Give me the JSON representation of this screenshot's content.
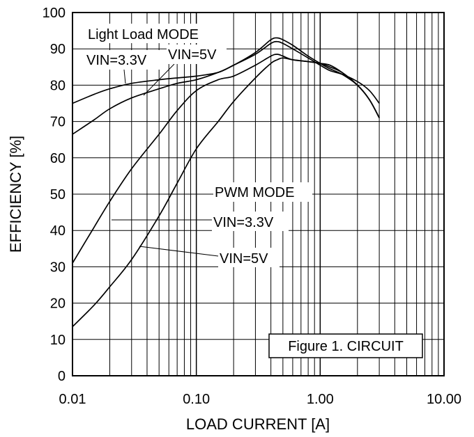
{
  "chart_data": {
    "type": "line",
    "title": "",
    "xlabel": "LOAD CURRENT [A]",
    "ylabel": "EFFICIENCY [%]",
    "x_scale": "log",
    "xlim": [
      0.01,
      10
    ],
    "ylim": [
      0,
      100
    ],
    "x_ticks": [
      "0.01",
      "0.10",
      "1.00",
      "10.00"
    ],
    "y_ticks": [
      "0",
      "10",
      "20",
      "30",
      "40",
      "50",
      "60",
      "70",
      "80",
      "90",
      "100"
    ],
    "grid": true,
    "series": [
      {
        "name": "Light Load MODE VIN=3.3V",
        "x": [
          0.01,
          0.015,
          0.02,
          0.03,
          0.05,
          0.07,
          0.1,
          0.15,
          0.2,
          0.3,
          0.4,
          0.45,
          0.5,
          0.6,
          0.8,
          1.0,
          1.2,
          1.5,
          2.0,
          2.5,
          3.0
        ],
        "y": [
          75,
          77.5,
          79,
          80.5,
          81.5,
          82,
          82.5,
          83.5,
          85.5,
          88.5,
          91.5,
          92,
          91.5,
          90,
          87.5,
          85.5,
          84,
          83,
          81,
          78.5,
          75
        ]
      },
      {
        "name": "Light Load MODE VIN=5V",
        "x": [
          0.01,
          0.015,
          0.02,
          0.03,
          0.05,
          0.07,
          0.1,
          0.15,
          0.2,
          0.3,
          0.4,
          0.45,
          0.5,
          0.6,
          0.8,
          1.0,
          1.2,
          1.5,
          2.0,
          2.5,
          3.0
        ],
        "y": [
          66.5,
          70.5,
          73.5,
          76.5,
          79,
          80.5,
          81.5,
          83.5,
          85.5,
          89,
          92.5,
          93,
          92.5,
          91,
          88,
          86,
          84.5,
          83,
          80,
          76,
          71
        ]
      },
      {
        "name": "PWM MODE VIN=3.3V",
        "x": [
          0.01,
          0.015,
          0.02,
          0.03,
          0.05,
          0.07,
          0.1,
          0.15,
          0.2,
          0.3,
          0.4,
          0.45,
          0.5,
          0.6,
          0.8,
          1.0,
          1.2,
          1.5,
          2.0,
          2.5,
          3.0
        ],
        "y": [
          31,
          41,
          48,
          57,
          66.5,
          73,
          78.5,
          81.5,
          82.5,
          85.5,
          88,
          88.5,
          88,
          87,
          86.5,
          86,
          85.5,
          83.5,
          80,
          76,
          71
        ]
      },
      {
        "name": "PWM MODE VIN=5V",
        "x": [
          0.01,
          0.015,
          0.02,
          0.03,
          0.05,
          0.07,
          0.1,
          0.15,
          0.2,
          0.3,
          0.4,
          0.45,
          0.5,
          0.6,
          0.8,
          1.0,
          1.2,
          1.5,
          2.0,
          2.5,
          3.0
        ],
        "y": [
          13.5,
          19.5,
          24.5,
          32,
          44,
          53,
          62.5,
          70,
          75.5,
          82,
          86,
          87,
          87.5,
          87,
          86.5,
          86,
          85,
          83.5,
          80,
          76,
          71
        ]
      }
    ],
    "annotations": {
      "light_load_mode": "Light Load MODE",
      "light_vin33": "VIN=3.3V",
      "light_vin5": "VIN=5V",
      "pwm_mode": "PWM MODE",
      "pwm_vin33": "VIN=3.3V",
      "pwm_vin5": "VIN=5V",
      "figure_label": "Figure 1. CIRCUIT"
    }
  }
}
